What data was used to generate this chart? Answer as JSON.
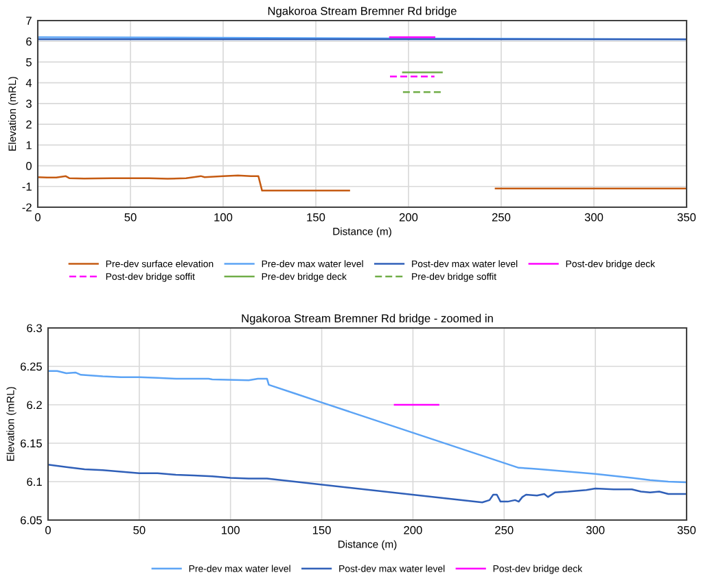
{
  "chart_data": [
    {
      "type": "line",
      "title": "Ngakoroa Stream Bremner Rd bridge",
      "xlabel": "Distance (m)",
      "ylabel": "Elevation (mRL)",
      "xlim": [
        0,
        350
      ],
      "xticks": [
        0,
        50,
        100,
        150,
        200,
        250,
        300,
        350
      ],
      "ylim": [
        -2,
        7
      ],
      "yticks": [
        -2,
        -1,
        0,
        1,
        2,
        3,
        4,
        5,
        6,
        7
      ],
      "grid": true,
      "legend": "bottom",
      "series": [
        {
          "name": "Pre-dev surface elevation",
          "color": "#c55a11",
          "line_style": "solid",
          "x": [
            0,
            5,
            10,
            15,
            17,
            25,
            40,
            50,
            60,
            70,
            80,
            88,
            90,
            100,
            108,
            115,
            119,
            121,
            168,
            200,
            247,
            350
          ],
          "values": [
            -0.55,
            -0.57,
            -0.57,
            -0.5,
            -0.6,
            -0.62,
            -0.6,
            -0.6,
            -0.6,
            -0.63,
            -0.6,
            -0.5,
            -0.55,
            -0.5,
            -0.47,
            -0.5,
            -0.5,
            -1.2,
            -1.2,
            null,
            -1.1,
            -1.1
          ]
        },
        {
          "name": "Pre-dev max water level",
          "color": "#5ba3f5",
          "line_style": "solid",
          "x": [
            0,
            350
          ],
          "values": [
            6.2,
            6.1
          ]
        },
        {
          "name": "Post-dev max water level",
          "color": "#2f5fb8",
          "line_style": "solid",
          "x": [
            0,
            350
          ],
          "values": [
            6.1,
            6.1
          ]
        },
        {
          "name": "Post-dev bridge deck",
          "color": "#ff00ff",
          "line_style": "solid",
          "x": [
            190,
            214
          ],
          "values": [
            6.2,
            6.2
          ]
        },
        {
          "name": "Post-dev bridge soffit",
          "color": "#ff00ff",
          "line_style": "dashed",
          "x": [
            190,
            214
          ],
          "values": [
            4.3,
            4.3
          ]
        },
        {
          "name": "Pre-dev bridge deck",
          "color": "#70ad47",
          "line_style": "solid",
          "x": [
            197,
            218
          ],
          "values": [
            4.5,
            4.5
          ]
        },
        {
          "name": "Pre-dev bridge soffit",
          "color": "#70ad47",
          "line_style": "dashed",
          "x": [
            197,
            218
          ],
          "values": [
            3.55,
            3.55
          ]
        }
      ]
    },
    {
      "type": "line",
      "title": "Ngakoroa Stream Bremner Rd bridge - zoomed in",
      "xlabel": "Distance (m)",
      "ylabel": "Elevation (mRL)",
      "xlim": [
        0,
        350
      ],
      "xticks": [
        0,
        50,
        100,
        150,
        200,
        250,
        300,
        350
      ],
      "ylim": [
        6.05,
        6.3
      ],
      "yticks": [
        6.05,
        6.1,
        6.15,
        6.2,
        6.25,
        6.3
      ],
      "grid": true,
      "legend": "bottom",
      "series": [
        {
          "name": "Pre-dev max water level",
          "color": "#5ba3f5",
          "line_style": "solid",
          "x": [
            0,
            5,
            10,
            15,
            18,
            30,
            40,
            50,
            60,
            70,
            88,
            90,
            110,
            115,
            120,
            121,
            135,
            150,
            258,
            265,
            270,
            280,
            300,
            320,
            330,
            340,
            350
          ],
          "values": [
            6.244,
            6.244,
            6.241,
            6.242,
            6.239,
            6.237,
            6.236,
            6.236,
            6.235,
            6.234,
            6.234,
            6.233,
            6.232,
            6.234,
            6.234,
            6.226,
            6.215,
            6.203,
            6.118,
            6.117,
            6.116,
            6.114,
            6.11,
            6.105,
            6.102,
            6.1,
            6.099
          ]
        },
        {
          "name": "Post-dev max water level",
          "color": "#2f5fb8",
          "line_style": "solid",
          "x": [
            0,
            10,
            20,
            30,
            40,
            50,
            60,
            70,
            80,
            90,
            100,
            110,
            120,
            238,
            242,
            244,
            246,
            248,
            252,
            256,
            258,
            260,
            262,
            268,
            272,
            274,
            278,
            285,
            295,
            300,
            310,
            320,
            325,
            330,
            335,
            340,
            350
          ],
          "values": [
            6.122,
            6.119,
            6.116,
            6.115,
            6.113,
            6.111,
            6.111,
            6.109,
            6.108,
            6.107,
            6.105,
            6.104,
            6.104,
            6.073,
            6.076,
            6.083,
            6.083,
            6.074,
            6.074,
            6.076,
            6.074,
            6.08,
            6.083,
            6.082,
            6.084,
            6.08,
            6.086,
            6.087,
            6.089,
            6.091,
            6.09,
            6.09,
            6.087,
            6.086,
            6.087,
            6.084,
            6.084
          ]
        },
        {
          "name": "Post-dev bridge deck",
          "color": "#ff00ff",
          "line_style": "solid",
          "x": [
            190,
            214
          ],
          "values": [
            6.2,
            6.2
          ]
        }
      ]
    }
  ]
}
